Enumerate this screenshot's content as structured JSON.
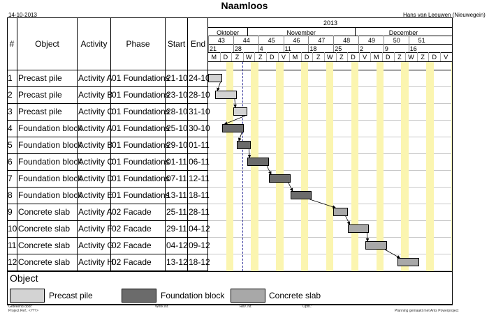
{
  "header": {
    "title": "Naamloos",
    "date": "14-10-2013",
    "author": "Hans van Leeuwen (Nieuwegein)"
  },
  "columns": {
    "num": "#",
    "object": "Object",
    "activity": "Activity",
    "phase": "Phase",
    "start": "Start",
    "end": "End"
  },
  "timeline": {
    "year": "2013",
    "months": [
      "Oktober",
      "November",
      "December"
    ],
    "weeks": [
      "43",
      "44",
      "45",
      "46",
      "47",
      "48",
      "49",
      "50",
      "51"
    ],
    "dates": [
      "21",
      "28",
      "4",
      "11",
      "18",
      "25",
      "2",
      "9",
      "16"
    ],
    "day_letters": [
      "M",
      "D",
      "Z",
      "W",
      "Z",
      "D",
      "V",
      "M",
      "D",
      "Z",
      "W",
      "Z",
      "D",
      "V",
      "M",
      "D",
      "Z",
      "W",
      "Z",
      "D",
      "V"
    ]
  },
  "rows": [
    {
      "num": "1",
      "object": "Precast pile",
      "activity": "Activity A",
      "phase": "01 Foundations",
      "start": "21-10",
      "end": "24-10",
      "category": "precast"
    },
    {
      "num": "2",
      "object": "Precast pile",
      "activity": "Activity B",
      "phase": "01 Foundations",
      "start": "23-10",
      "end": "28-10",
      "category": "precast"
    },
    {
      "num": "3",
      "object": "Precast pile",
      "activity": "Activity C",
      "phase": "01 Foundations",
      "start": "28-10",
      "end": "31-10",
      "category": "precast"
    },
    {
      "num": "4",
      "object": "Foundation block",
      "activity": "Activity A",
      "phase": "01 Foundations",
      "start": "25-10",
      "end": "30-10",
      "category": "foundation"
    },
    {
      "num": "5",
      "object": "Foundation block",
      "activity": "Activity B",
      "phase": "01 Foundations",
      "start": "29-10",
      "end": "01-11",
      "category": "foundation"
    },
    {
      "num": "6",
      "object": "Foundation block",
      "activity": "Activity C",
      "phase": "01 Foundations",
      "start": "01-11",
      "end": "06-11",
      "category": "foundation"
    },
    {
      "num": "7",
      "object": "Foundation block",
      "activity": "Activity D",
      "phase": "01 Foundations",
      "start": "07-11",
      "end": "12-11",
      "category": "foundation"
    },
    {
      "num": "8",
      "object": "Foundation block",
      "activity": "Activity E",
      "phase": "01 Foundations",
      "start": "13-11",
      "end": "18-11",
      "category": "foundation"
    },
    {
      "num": "9",
      "object": "Concrete slab",
      "activity": "Activity A",
      "phase": "02 Facade",
      "start": "25-11",
      "end": "28-11",
      "category": "slab"
    },
    {
      "num": "10",
      "object": "Concrete slab",
      "activity": "Activity F",
      "phase": "02 Facade",
      "start": "29-11",
      "end": "04-12",
      "category": "slab"
    },
    {
      "num": "11",
      "object": "Concrete slab",
      "activity": "Activity G",
      "phase": "02 Facade",
      "start": "04-12",
      "end": "09-12",
      "category": "slab"
    },
    {
      "num": "12",
      "object": "Concrete slab",
      "activity": "Activity H",
      "phase": "02 Facade",
      "start": "13-12",
      "end": "18-12",
      "category": "slab"
    }
  ],
  "legend": {
    "title": "Object",
    "items": [
      {
        "label": "Precast pile",
        "color": "#d3d3d3"
      },
      {
        "label": "Foundation block",
        "color": "#6b6b6b"
      },
      {
        "label": "Concrete slab",
        "color": "#a8a8a8"
      }
    ]
  },
  "footer": {
    "drawn_by": "Getekend door:",
    "project_ref": "Project Ref.: <???>",
    "work_nr": "Werk Nr.",
    "rev_nr": "Rev. Nr.",
    "remarks": "Opm.:",
    "note": "Planning gemaakt met Ants Powerproject"
  },
  "colors": {
    "precast": "#d3d3d3",
    "foundation": "#6b6b6b",
    "slab": "#a8a8a8",
    "weekend": "#fbf5b0",
    "today": "#3a3aa0"
  }
}
